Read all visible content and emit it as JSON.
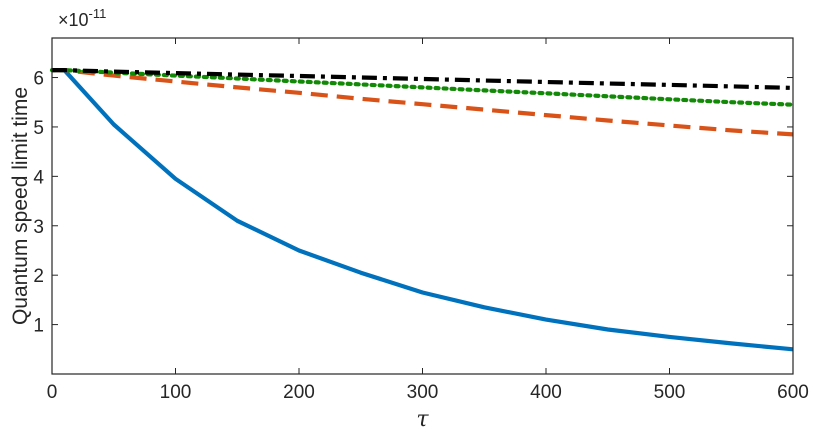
{
  "chart_data": {
    "type": "line",
    "title": "",
    "xlabel": "τ",
    "ylabel": "Quantum speed limit time",
    "y_multiplier": "×10",
    "y_multiplier_exponent": "-11",
    "xlim": [
      0,
      600
    ],
    "ylim": [
      0,
      6.8
    ],
    "xticks": [
      0,
      100,
      200,
      300,
      400,
      500,
      600
    ],
    "yticks": [
      1,
      2,
      3,
      4,
      5,
      6
    ],
    "grid": false,
    "legend": "none",
    "x": [
      0,
      10,
      50,
      100,
      150,
      200,
      250,
      300,
      350,
      400,
      450,
      500,
      550,
      600
    ],
    "series": [
      {
        "color": "#0072BD",
        "style": "solid",
        "values": [
          6.15,
          6.15,
          5.05,
          3.95,
          3.1,
          2.5,
          2.05,
          1.65,
          1.35,
          1.1,
          0.9,
          0.75,
          0.62,
          0.5
        ]
      },
      {
        "color": "#D95319",
        "style": "dashed",
        "values": [
          6.15,
          6.15,
          6.04,
          5.92,
          5.8,
          5.69,
          5.57,
          5.46,
          5.35,
          5.24,
          5.13,
          5.03,
          4.93,
          4.85
        ]
      },
      {
        "color": "#138A07",
        "style": "dotted",
        "values": [
          6.15,
          6.15,
          6.1,
          6.04,
          5.98,
          5.92,
          5.86,
          5.8,
          5.74,
          5.68,
          5.62,
          5.56,
          5.5,
          5.45
        ]
      },
      {
        "color": "#000000",
        "style": "dash-dot",
        "values": [
          6.15,
          6.15,
          6.12,
          6.09,
          6.06,
          6.03,
          6.0,
          5.97,
          5.94,
          5.91,
          5.88,
          5.85,
          5.82,
          5.79
        ]
      }
    ]
  }
}
